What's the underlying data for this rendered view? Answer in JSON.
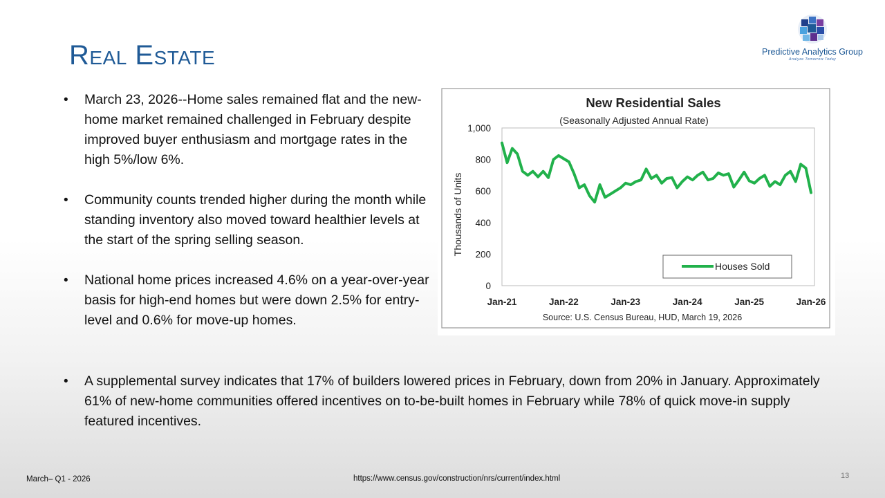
{
  "slide": {
    "title": "Real Estate",
    "logo": {
      "name": "Predictive Analytics Group",
      "tagline": "Analyze Tomorrow Today",
      "icon": "puzzle-globe-icon"
    },
    "bullets": [
      "March 23, 2026--Home sales remained flat and the new-home market remained challenged in February despite improved buyer enthusiasm and mortgage rates in the high 5%/low 6%.",
      "Community counts trended higher during the month while standing inventory also moved toward healthier levels at the start of the spring selling season.",
      "National home prices increased 4.6% on a year-over-year basis for high-end homes but were down 2.5% for entry-level and 0.6% for move-up homes."
    ],
    "bottom_bullet": "A supplemental survey indicates that 17% of builders lowered prices in February, down from 20% in January. Approximately 61% of new-home communities offered incentives on to-be-built homes in February while 78% of quick move-in supply featured incentives.",
    "footer": {
      "left": "March– Q1 - 2026",
      "center": "https://www.census.gov/construction/nrs/current/index.html",
      "page_number": "13"
    }
  },
  "chart_data": {
    "type": "line",
    "title": "New Residential Sales",
    "subtitle": "(Seasonally Adjusted Annual Rate)",
    "ylabel": "Thousands of Units",
    "xlabel": "",
    "ylim": [
      0,
      1000
    ],
    "yticks": [
      "0",
      "200",
      "400",
      "600",
      "800",
      "1,000"
    ],
    "xticks": [
      "Jan-21",
      "Jan-22",
      "Jan-23",
      "Jan-24",
      "Jan-25",
      "Jan-26"
    ],
    "source": "Source:  U.S. Census Bureau, HUD, March 19, 2026",
    "legend": "bottom-right",
    "line_color": "#21b14b",
    "series": [
      {
        "name": "Houses Sold",
        "values": [
          905,
          780,
          870,
          835,
          725,
          700,
          725,
          690,
          725,
          685,
          800,
          825,
          805,
          785,
          710,
          620,
          640,
          570,
          530,
          640,
          560,
          580,
          600,
          620,
          650,
          640,
          660,
          670,
          740,
          680,
          700,
          650,
          680,
          685,
          620,
          660,
          690,
          670,
          700,
          720,
          670,
          680,
          715,
          700,
          710,
          625,
          670,
          720,
          665,
          650,
          680,
          700,
          630,
          660,
          640,
          700,
          725,
          660,
          770,
          745,
          590
        ]
      }
    ]
  }
}
